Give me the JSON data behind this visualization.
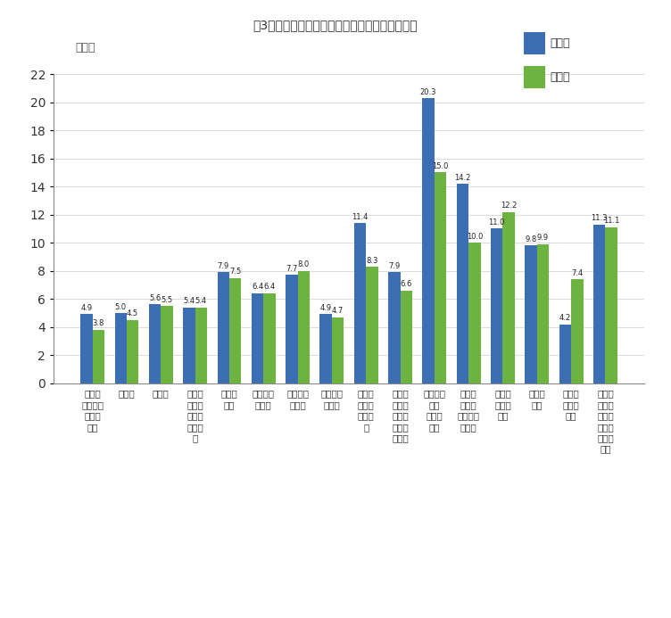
{
  "title": "図3　産業別入職率・離職率（令和４年上半期）",
  "ylabel": "（％）",
  "blue_color": "#3c6eb4",
  "green_color": "#6db33f",
  "nyushoku": [
    4.9,
    5.0,
    5.6,
    5.4,
    7.9,
    6.4,
    7.7,
    4.9,
    11.4,
    7.9,
    20.3,
    14.2,
    11.0,
    9.8,
    4.2,
    11.3
  ],
  "rishoku": [
    3.8,
    4.5,
    5.5,
    5.4,
    7.5,
    6.4,
    8.0,
    4.7,
    8.3,
    6.6,
    15.0,
    10.0,
    12.2,
    9.9,
    7.4,
    11.1
  ],
  "ylim": [
    0,
    22
  ],
  "yticks": [
    0,
    2,
    4,
    6,
    8,
    10,
    12,
    14,
    16,
    18,
    20,
    22
  ],
  "legend_labels": [
    "入職率",
    "離職率"
  ],
  "cat_labels": [
    "鉱業、\n採石業、\n砂利採\n取業",
    "建設業",
    "製造業",
    "電気・\nガス・\n熱供給\n・水道\n業",
    "情報通\n信業",
    "運輸業、\n郵便業",
    "卵売業、\n小売業",
    "金融業、\n保険業",
    "不動産\n業、物\n品貸貸\n業",
    "学術研\n究、専\n門・技\n術サー\nビス業",
    "宿泊業、\n飲食\nサービ\nス業",
    "生活関\n連サー\nビス業、\n娯楽業",
    "教育、\n学習支\n援業",
    "医療、\n福祉",
    "複合サ\nービス\n事業",
    "サービ\nス業（\n他に分\n類され\nないも\nの）"
  ]
}
